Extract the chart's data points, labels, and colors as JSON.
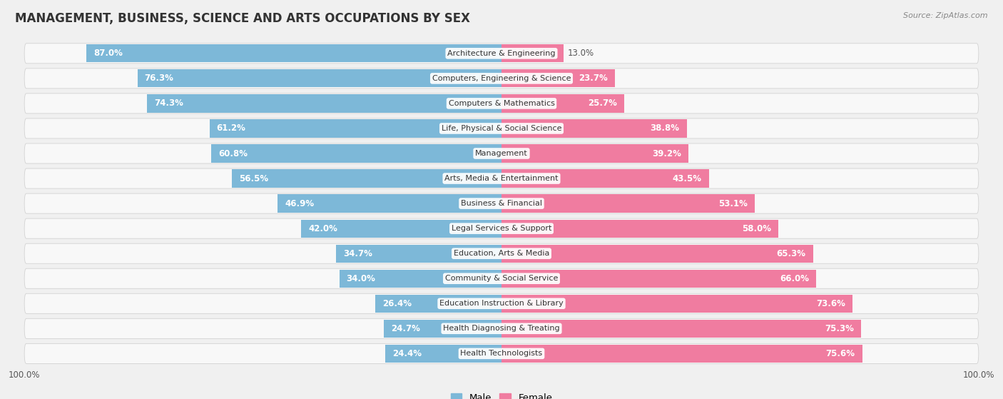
{
  "title": "MANAGEMENT, BUSINESS, SCIENCE AND ARTS OCCUPATIONS BY SEX",
  "source": "Source: ZipAtlas.com",
  "categories": [
    "Architecture & Engineering",
    "Computers, Engineering & Science",
    "Computers & Mathematics",
    "Life, Physical & Social Science",
    "Management",
    "Arts, Media & Entertainment",
    "Business & Financial",
    "Legal Services & Support",
    "Education, Arts & Media",
    "Community & Social Service",
    "Education Instruction & Library",
    "Health Diagnosing & Treating",
    "Health Technologists"
  ],
  "male": [
    87.0,
    76.3,
    74.3,
    61.2,
    60.8,
    56.5,
    46.9,
    42.0,
    34.7,
    34.0,
    26.4,
    24.7,
    24.4
  ],
  "female": [
    13.0,
    23.7,
    25.7,
    38.8,
    39.2,
    43.5,
    53.1,
    58.0,
    65.3,
    66.0,
    73.6,
    75.3,
    75.6
  ],
  "male_color": "#7db8d8",
  "female_color": "#f07ca0",
  "bg_color": "#f0f0f0",
  "row_bg_color": "#e8e8e8",
  "bar_bg_color": "#f8f8f8",
  "title_fontsize": 12,
  "label_fontsize": 8.5,
  "cat_fontsize": 8,
  "bar_height": 0.72,
  "legend_male": "Male",
  "legend_female": "Female"
}
